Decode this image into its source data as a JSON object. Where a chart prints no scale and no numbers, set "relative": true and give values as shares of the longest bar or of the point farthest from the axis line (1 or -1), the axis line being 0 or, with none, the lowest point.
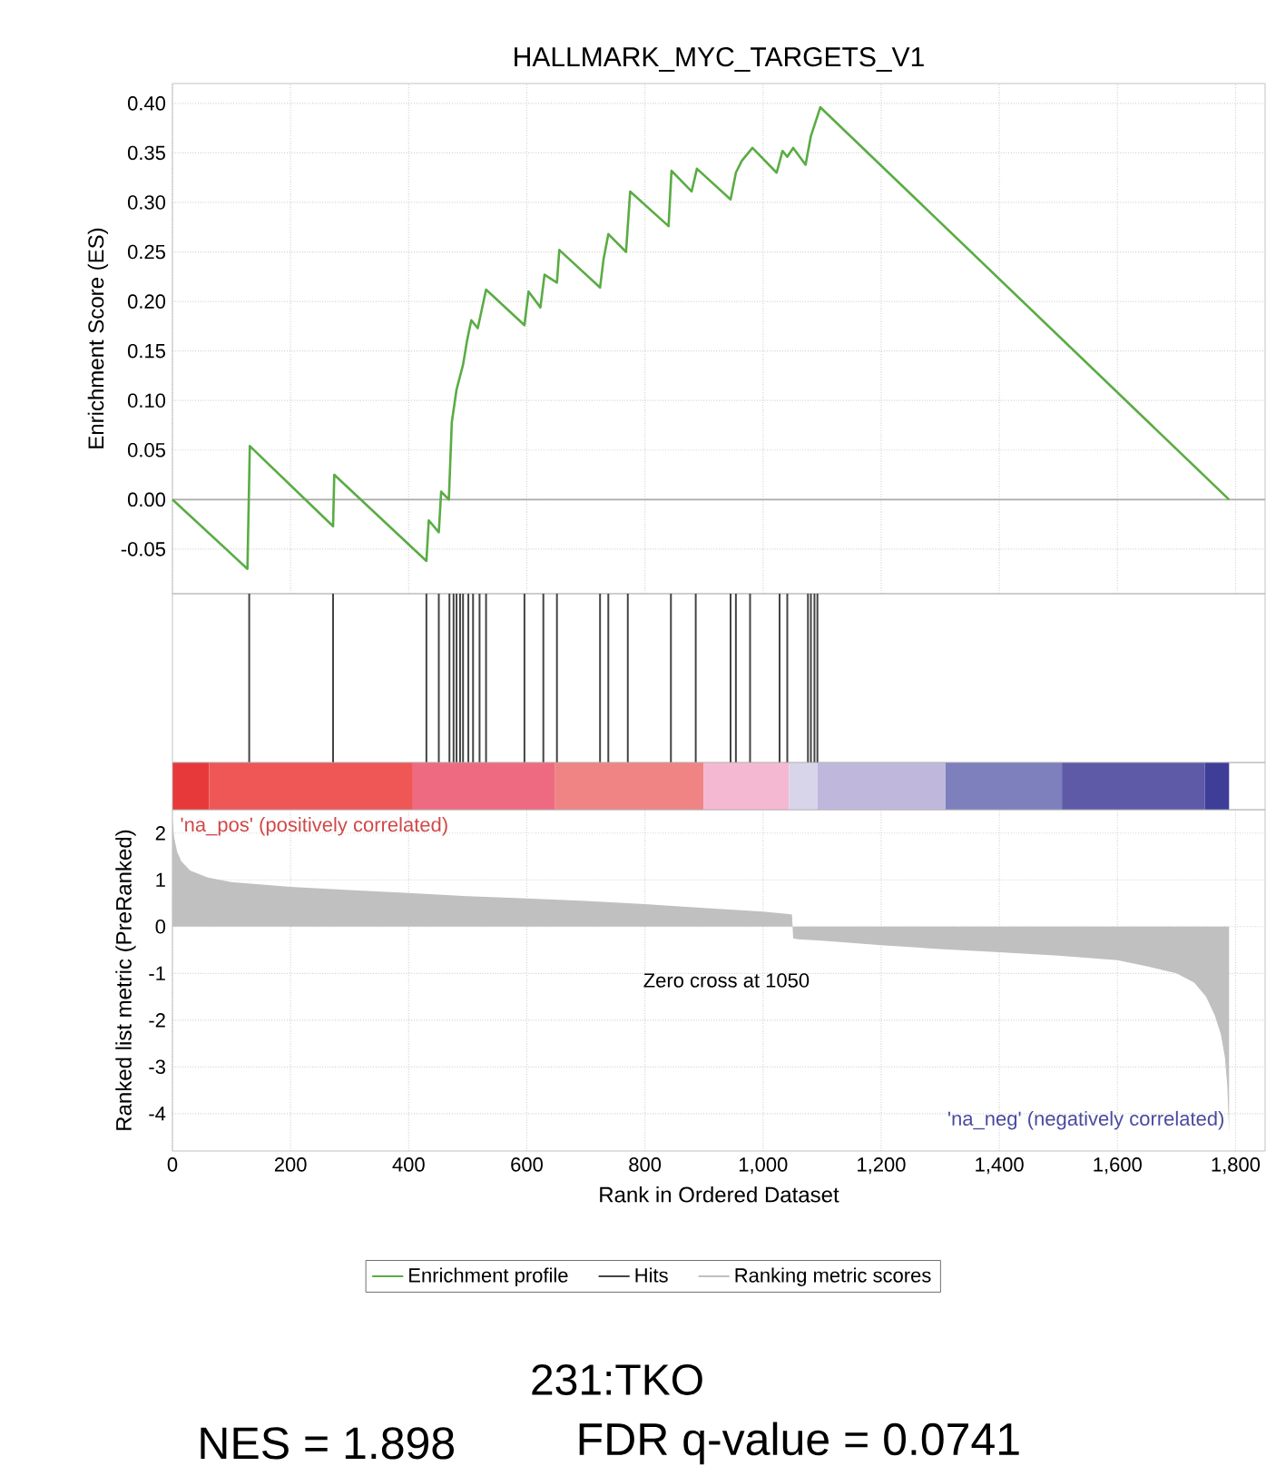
{
  "chart_data": [
    {
      "type": "line",
      "title": "HALLMARK_MYC_TARGETS_V1",
      "ylabel": "Enrichment Score (ES)",
      "x": [
        0,
        127,
        131,
        272,
        274,
        430,
        434,
        451,
        455,
        468,
        473,
        481,
        492,
        499,
        506,
        517,
        531,
        596,
        603,
        623,
        630,
        651,
        655,
        724,
        730,
        738,
        768,
        775,
        840,
        845,
        879,
        888,
        945,
        954,
        964,
        982,
        1023,
        1033,
        1041,
        1051,
        1072,
        1081,
        1097,
        1789
      ],
      "series": [
        {
          "name": "Enrichment profile",
          "color": "#5aac44",
          "values": [
            0,
            -0.07,
            0.054,
            -0.027,
            0.025,
            -0.062,
            -0.021,
            -0.033,
            0.008,
            0.0,
            0.078,
            0.111,
            0.136,
            0.161,
            0.181,
            0.173,
            0.212,
            0.176,
            0.21,
            0.194,
            0.227,
            0.219,
            0.252,
            0.214,
            0.243,
            0.268,
            0.25,
            0.311,
            0.276,
            0.332,
            0.311,
            0.334,
            0.303,
            0.33,
            0.342,
            0.355,
            0.33,
            0.352,
            0.346,
            0.355,
            0.338,
            0.367,
            0.396,
            0.0
          ]
        }
      ],
      "xlim": [
        0,
        1850
      ],
      "ylim": [
        -0.095,
        0.42
      ],
      "xticks": [
        0,
        200,
        400,
        600,
        800,
        1000,
        1200,
        1400,
        1600,
        1800
      ],
      "yticks": [
        {
          "value": -0.05,
          "label": "-0.05"
        },
        {
          "value": 0,
          "label": "0.00"
        },
        {
          "value": 0.05,
          "label": "0.05"
        },
        {
          "value": 0.1,
          "label": "0.10"
        },
        {
          "value": 0.15,
          "label": "0.15"
        },
        {
          "value": 0.2,
          "label": "0.20"
        },
        {
          "value": 0.25,
          "label": "0.25"
        },
        {
          "value": 0.3,
          "label": "0.30"
        },
        {
          "value": 0.35,
          "label": "0.35"
        },
        {
          "value": 0.4,
          "label": "0.40"
        }
      ],
      "tick_labels": "y",
      "grid": true,
      "ref_lines": [
        {
          "axis": "y",
          "value": 0,
          "color": "#aaaaaa"
        }
      ]
    },
    {
      "type": "bar",
      "relative": true,
      "x": [
        130,
        272,
        430,
        451,
        469,
        476,
        481,
        487,
        492,
        501,
        509,
        520,
        531,
        596,
        628,
        651,
        724,
        738,
        771,
        844,
        886,
        945,
        954,
        978,
        1028,
        1041,
        1076,
        1081,
        1087,
        1092
      ],
      "series": [
        {
          "name": "Hits",
          "color": "#444444",
          "values": [
            1,
            1,
            1,
            1,
            1,
            1,
            1,
            1,
            1,
            1,
            1,
            1,
            1,
            1,
            1,
            1,
            1,
            1,
            1,
            1,
            1,
            1,
            1,
            1,
            1,
            1,
            1,
            1,
            1,
            1
          ]
        }
      ],
      "xlim": [
        0,
        1850
      ],
      "tick_labels": false
    },
    {
      "type": "area",
      "xlabel": "Rank in Ordered Dataset",
      "ylabel": "Ranked list metric (PreRanked)",
      "x": [
        0,
        3,
        8,
        15,
        30,
        60,
        100,
        200,
        300,
        400,
        500,
        600,
        700,
        800,
        900,
        1000,
        1040,
        1049,
        1050,
        1051,
        1060,
        1100,
        1200,
        1300,
        1400,
        1500,
        1600,
        1650,
        1700,
        1730,
        1750,
        1765,
        1775,
        1782,
        1786,
        1789
      ],
      "series": [
        {
          "name": "Ranking metric scores",
          "color": "#c0c0c0",
          "values": [
            2.3,
            1.9,
            1.6,
            1.4,
            1.2,
            1.05,
            0.95,
            0.85,
            0.78,
            0.72,
            0.65,
            0.6,
            0.55,
            0.48,
            0.4,
            0.32,
            0.27,
            0.26,
            0,
            -0.25,
            -0.27,
            -0.3,
            -0.4,
            -0.48,
            -0.55,
            -0.62,
            -0.72,
            -0.85,
            -1.0,
            -1.2,
            -1.5,
            -1.9,
            -2.3,
            -2.8,
            -3.4,
            -4.4
          ]
        }
      ],
      "xlim": [
        0,
        1850
      ],
      "ylim": [
        -4.8,
        2.5
      ],
      "xticks": [
        0,
        200,
        400,
        600,
        800,
        {
          "value": 1000,
          "label": "1,000"
        },
        {
          "value": 1200,
          "label": "1,200"
        },
        {
          "value": 1400,
          "label": "1,400"
        },
        {
          "value": 1600,
          "label": "1,600"
        },
        {
          "value": 1800,
          "label": "1,800"
        }
      ],
      "yticks": [
        -4,
        -3,
        -2,
        -1,
        0,
        1,
        2
      ],
      "grid": true,
      "legend": "bottom",
      "annotations": [
        "'na_pos' (positively correlated)",
        "Zero cross at 1050",
        "'na_neg' (negatively correlated)",
        "231:TKO",
        "NES = 1.898",
        "FDR q-value = 0.0741"
      ]
    }
  ]
}
